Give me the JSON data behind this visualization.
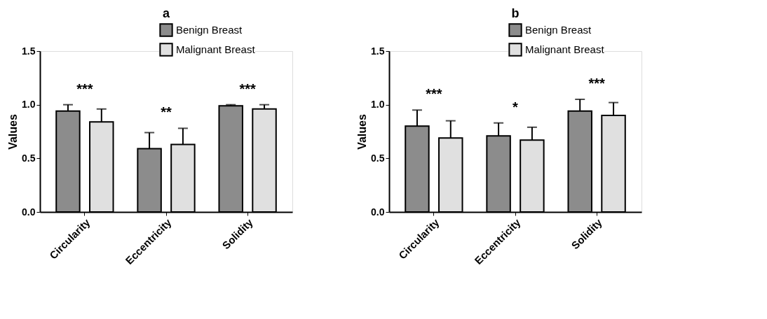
{
  "chart_data": [
    {
      "type": "bar",
      "title": "a",
      "ylabel": "Values",
      "categories": [
        "Circularity",
        "Eccentricity",
        "Solidity"
      ],
      "series": [
        {
          "name": "Benign Breast",
          "color": "#8c8c8c",
          "values": [
            0.94,
            0.59,
            0.99
          ],
          "errors": [
            0.06,
            0.15,
            0.01
          ]
        },
        {
          "name": "Malignant Breast",
          "color": "#e0e0e0",
          "values": [
            0.84,
            0.63,
            0.96
          ],
          "errors": [
            0.12,
            0.15,
            0.04
          ]
        }
      ],
      "ylim": [
        0,
        1.5
      ],
      "yticks": [
        {
          "value": 0,
          "label": "0.0"
        },
        {
          "value": 0.5,
          "label": "0.5"
        },
        {
          "value": 1,
          "label": "1.0"
        },
        {
          "value": 1.5,
          "label": "1.5"
        }
      ],
      "annotations": [
        "***",
        "**",
        "***"
      ],
      "legend": "top right",
      "grid": false
    },
    {
      "type": "bar",
      "title": "b",
      "ylabel": "Values",
      "categories": [
        "Circularity",
        "Eccentricity",
        "Solidity"
      ],
      "series": [
        {
          "name": "Benign Breast",
          "color": "#8c8c8c",
          "values": [
            0.8,
            0.71,
            0.94
          ],
          "errors": [
            0.15,
            0.12,
            0.11
          ]
        },
        {
          "name": "Malignant Breast",
          "color": "#e0e0e0",
          "values": [
            0.69,
            0.67,
            0.9
          ],
          "errors": [
            0.16,
            0.12,
            0.12
          ]
        }
      ],
      "ylim": [
        0,
        1.5
      ],
      "yticks": [
        {
          "value": 0,
          "label": "0.0"
        },
        {
          "value": 0.5,
          "label": "0.5"
        },
        {
          "value": 1,
          "label": "1.0"
        },
        {
          "value": 1.5,
          "label": "1.5"
        }
      ],
      "annotations": [
        "***",
        "*",
        "***"
      ],
      "legend": "top right",
      "grid": false
    }
  ]
}
